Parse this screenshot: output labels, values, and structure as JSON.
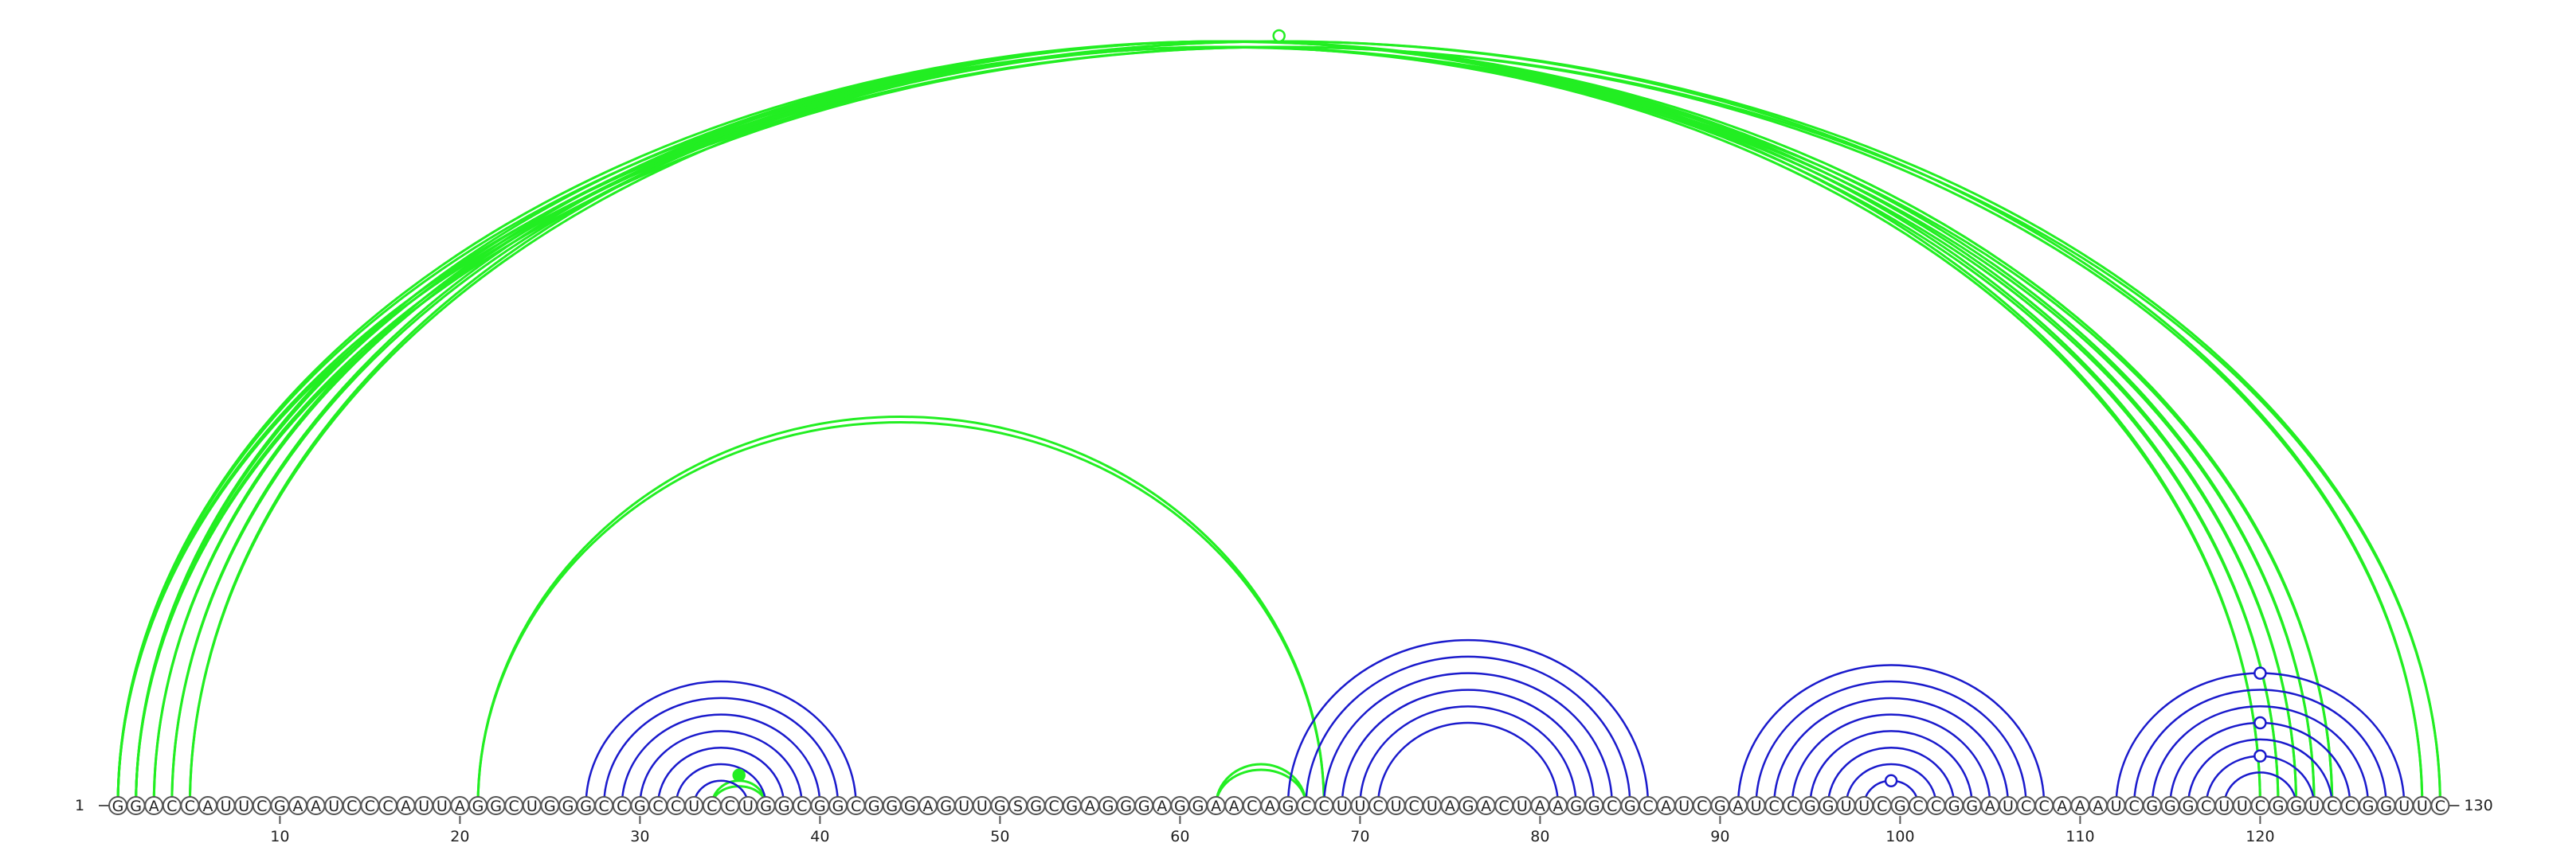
{
  "sequence": "GGACCAUUCGAAUCCCAUUAGGCUGGGCCGCCUCCUGGCGGCGGGAGUUGSGCGAGGGAGGAACAGCCUUCUCUAGACUAAGGCGCAUCGAUCCGGUUCGCCGGAUCCAAAUCGGGCUUCGGUCCGGUUC",
  "start_label": "1",
  "end_label": "130",
  "ticks": [
    10,
    20,
    30,
    40,
    50,
    60,
    70,
    80,
    90,
    100,
    110,
    120
  ],
  "colors": {
    "green": "#22ee22",
    "blue": "#1a1acc"
  },
  "pairs_green": [
    [
      1,
      124
    ],
    [
      2,
      123
    ],
    [
      3,
      122
    ],
    [
      4,
      121
    ],
    [
      5,
      120
    ],
    [
      21,
      68
    ],
    [
      34,
      37
    ],
    [
      62,
      67
    ],
    [
      1,
      130
    ],
    [
      2,
      129
    ]
  ],
  "pairs_blue": [
    [
      27,
      42
    ],
    [
      28,
      41
    ],
    [
      29,
      40
    ],
    [
      30,
      39
    ],
    [
      31,
      38
    ],
    [
      32,
      37
    ],
    [
      33,
      36
    ],
    [
      66,
      86
    ],
    [
      67,
      85
    ],
    [
      68,
      84
    ],
    [
      69,
      83
    ],
    [
      70,
      82
    ],
    [
      71,
      81
    ],
    [
      91,
      108
    ],
    [
      92,
      107
    ],
    [
      93,
      106
    ],
    [
      94,
      105
    ],
    [
      95,
      104
    ],
    [
      96,
      103
    ],
    [
      97,
      102
    ],
    [
      98,
      101
    ],
    [
      112,
      128
    ],
    [
      113,
      127
    ],
    [
      114,
      126
    ],
    [
      115,
      125
    ],
    [
      116,
      124
    ],
    [
      117,
      123
    ],
    [
      118,
      122
    ]
  ],
  "markers": [
    {
      "pos": 65,
      "arc": [
        1,
        130
      ],
      "color": "green",
      "filled": false
    },
    {
      "pos": 35,
      "arc": [
        34,
        37
      ],
      "color": "green",
      "filled": true
    },
    {
      "pos": 99,
      "arc": [
        98,
        101
      ],
      "color": "blue",
      "filled": false
    },
    {
      "pos": 120,
      "arc": [
        112,
        128
      ],
      "color": "blue",
      "filled": false
    },
    {
      "pos": 120,
      "arc": [
        115,
        125
      ],
      "color": "blue",
      "filled": false
    },
    {
      "pos": 120,
      "arc": [
        117,
        123
      ],
      "color": "blue",
      "filled": false
    }
  ]
}
